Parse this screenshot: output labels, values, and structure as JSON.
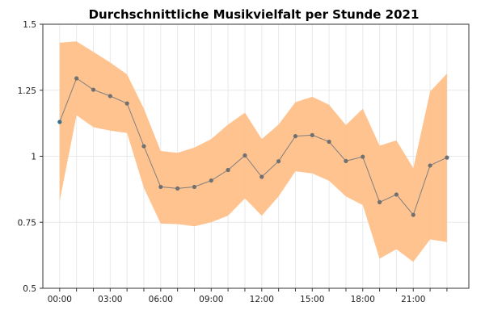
{
  "chart_data": {
    "type": "line",
    "title": "Durchschnittliche Musikvielfalt per Stunde 2021",
    "xlabel": "",
    "ylabel": "",
    "x": [
      0,
      1,
      2,
      3,
      4,
      5,
      6,
      7,
      8,
      9,
      10,
      11,
      12,
      13,
      14,
      15,
      16,
      17,
      18,
      19,
      20,
      21,
      22,
      23
    ],
    "x_tick_values": [
      0,
      3,
      6,
      9,
      12,
      15,
      18,
      21
    ],
    "x_tick_labels": [
      "00:00",
      "03:00",
      "06:00",
      "09:00",
      "12:00",
      "15:00",
      "18:00",
      "21:00"
    ],
    "y_ticks": [
      0.5,
      0.75,
      1,
      1.25,
      1.5
    ],
    "y_tick_labels": [
      "0.5",
      "0.75",
      "1",
      "1.25",
      "1.5"
    ],
    "xlim": [
      -1,
      24.3
    ],
    "ylim": [
      0.5,
      1.5
    ],
    "grid": true,
    "series": [
      {
        "type": "line",
        "values": [
          1.13,
          1.295,
          1.252,
          1.228,
          1.2,
          1.038,
          0.884,
          0.878,
          0.884,
          0.908,
          0.948,
          1.003,
          0.922,
          0.981,
          1.076,
          1.08,
          1.055,
          0.982,
          0.998,
          0.826,
          0.855,
          0.778,
          0.965,
          0.995
        ],
        "color": "#7f7f7f"
      },
      {
        "type": "band",
        "upper": [
          1.43,
          1.435,
          1.395,
          1.355,
          1.31,
          1.18,
          1.02,
          1.013,
          1.033,
          1.065,
          1.12,
          1.165,
          1.065,
          1.12,
          1.205,
          1.225,
          1.195,
          1.118,
          1.18,
          1.04,
          1.06,
          0.955,
          1.245,
          1.313
        ],
        "lower": [
          0.83,
          1.155,
          1.11,
          1.097,
          1.088,
          0.88,
          0.745,
          0.743,
          0.735,
          0.75,
          0.775,
          0.84,
          0.775,
          0.848,
          0.943,
          0.935,
          0.907,
          0.848,
          0.815,
          0.612,
          0.648,
          0.6,
          0.685,
          0.675
        ],
        "color": "#ffc08a"
      }
    ],
    "first_point_color": "#3d6f8a",
    "point_color": "#707070"
  }
}
